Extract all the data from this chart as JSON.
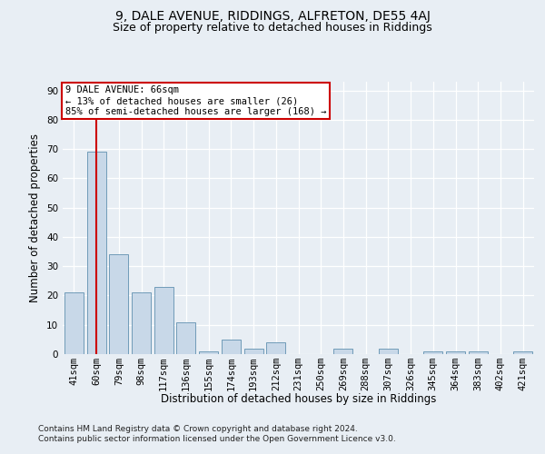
{
  "title1": "9, DALE AVENUE, RIDDINGS, ALFRETON, DE55 4AJ",
  "title2": "Size of property relative to detached houses in Riddings",
  "xlabel": "Distribution of detached houses by size in Riddings",
  "ylabel": "Number of detached properties",
  "footer": "Contains HM Land Registry data © Crown copyright and database right 2024.\nContains public sector information licensed under the Open Government Licence v3.0.",
  "categories": [
    "41sqm",
    "60sqm",
    "79sqm",
    "98sqm",
    "117sqm",
    "136sqm",
    "155sqm",
    "174sqm",
    "193sqm",
    "212sqm",
    "231sqm",
    "250sqm",
    "269sqm",
    "288sqm",
    "307sqm",
    "326sqm",
    "345sqm",
    "364sqm",
    "383sqm",
    "402sqm",
    "421sqm"
  ],
  "values": [
    21,
    69,
    34,
    21,
    23,
    11,
    1,
    5,
    2,
    4,
    0,
    0,
    2,
    0,
    2,
    0,
    1,
    1,
    1,
    0,
    1
  ],
  "bar_color": "#c8d8e8",
  "bar_edge_color": "#6090b0",
  "vline_x": 1,
  "vline_color": "#cc0000",
  "annotation_text": "9 DALE AVENUE: 66sqm\n← 13% of detached houses are smaller (26)\n85% of semi-detached houses are larger (168) →",
  "annotation_box_color": "#ffffff",
  "annotation_box_edge": "#cc0000",
  "ylim": [
    0,
    93
  ],
  "yticks": [
    0,
    10,
    20,
    30,
    40,
    50,
    60,
    70,
    80,
    90
  ],
  "bg_color": "#e8eef4",
  "plot_bg_color": "#e8eef4",
  "grid_color": "#ffffff",
  "title1_fontsize": 10,
  "title2_fontsize": 9,
  "xlabel_fontsize": 8.5,
  "ylabel_fontsize": 8.5,
  "tick_fontsize": 7.5,
  "footer_fontsize": 6.5,
  "ann_fontsize": 7.5
}
